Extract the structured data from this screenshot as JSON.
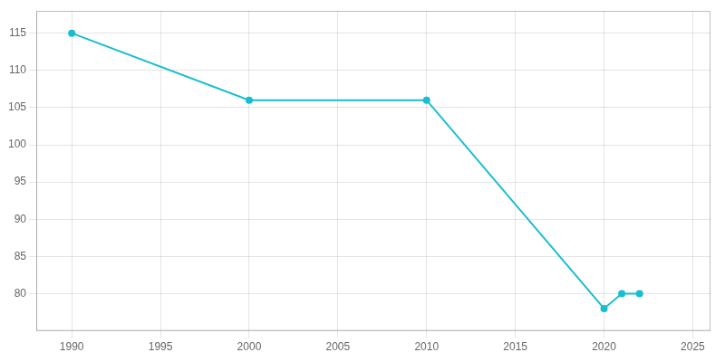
{
  "chart_data": {
    "type": "line",
    "x": [
      1990,
      2000,
      2010,
      2020,
      2021,
      2022
    ],
    "values": [
      115,
      106,
      106,
      78,
      80,
      80
    ],
    "color": "#17becf",
    "marker": "circle",
    "xlim": [
      1988,
      2026
    ],
    "ylim": [
      75,
      118
    ],
    "xticks": [
      1990,
      1995,
      2000,
      2005,
      2010,
      2015,
      2020,
      2025
    ],
    "yticks": [
      80,
      85,
      90,
      95,
      100,
      105,
      110,
      115
    ],
    "grid": true
  }
}
